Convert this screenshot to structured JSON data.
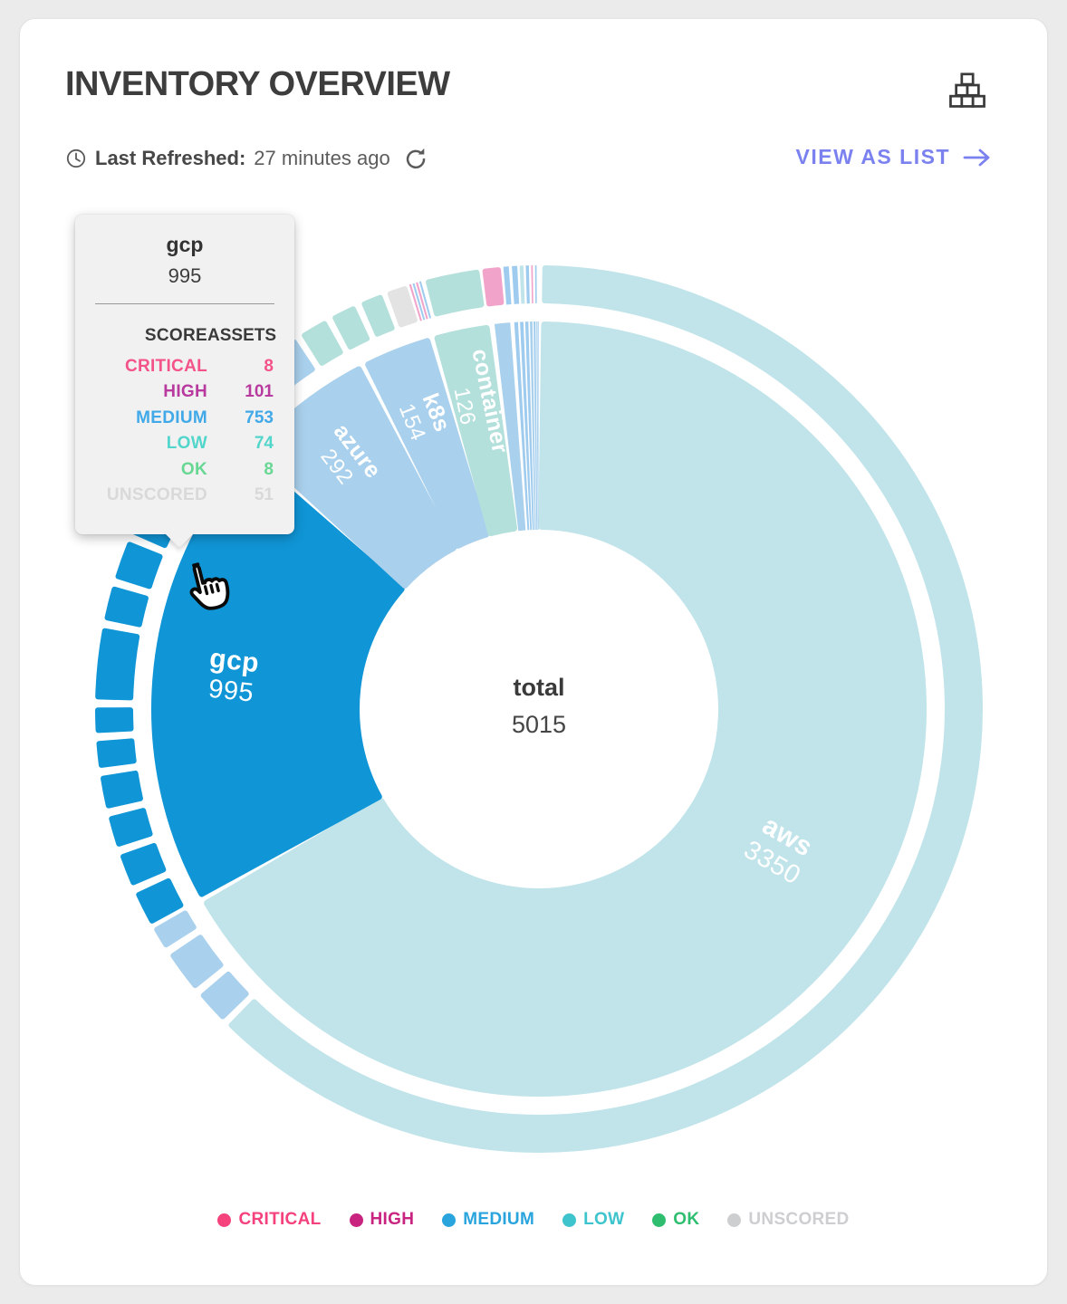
{
  "page": {
    "background": "#ebebeb",
    "card_background": "#ffffff"
  },
  "header": {
    "title": "INVENTORY OVERVIEW",
    "last_refreshed_label": "Last Refreshed:",
    "last_refreshed_value": "27 minutes ago",
    "view_as_list_label": "VIEW AS LIST",
    "accent_color": "#7b82f0"
  },
  "center": {
    "label": "total",
    "value": "5015"
  },
  "tooltip": {
    "title": "gcp",
    "total": "995",
    "columns": {
      "score": "SCORE",
      "assets": "ASSETS"
    },
    "rows": [
      {
        "label": "CRITICAL",
        "value": "8",
        "color": "#f4538a"
      },
      {
        "label": "HIGH",
        "value": "101",
        "color": "#b83a9e"
      },
      {
        "label": "MEDIUM",
        "value": "753",
        "color": "#41a9e8"
      },
      {
        "label": "LOW",
        "value": "74",
        "color": "#52d5cb"
      },
      {
        "label": "OK",
        "value": "8",
        "color": "#68d794"
      },
      {
        "label": "UNSCORED",
        "value": "51",
        "color": "#d9d9d9"
      }
    ]
  },
  "legend": {
    "items": [
      {
        "label": "CRITICAL",
        "color": "#f5427c"
      },
      {
        "label": "HIGH",
        "color": "#c92380"
      },
      {
        "label": "MEDIUM",
        "color": "#29a4dd"
      },
      {
        "label": "LOW",
        "color": "#3ec4cc"
      },
      {
        "label": "OK",
        "color": "#2fbe70"
      },
      {
        "label": "UNSCORED",
        "color": "#cdced0"
      }
    ]
  },
  "chart_data": {
    "type": "sunburst",
    "total": 5015,
    "center": [
      595,
      783
    ],
    "radii": {
      "inner": [
        198,
        428
      ],
      "outer": [
        448,
        490
      ]
    },
    "legend_position": "bottom",
    "colors": {
      "palecyan": "#c0e4ea",
      "brightblue": "#1095d6",
      "lightblue": "#a9d0ec",
      "paleteal": "#b4e0dc",
      "gray": "#e3e3e3",
      "pink": "#f2a3c9",
      "medblue": "#9ecbee"
    },
    "slices": [
      {
        "name": "aws",
        "value": 3350,
        "color": "palecyan",
        "label": true,
        "label_r": 308,
        "font": 30
      },
      {
        "name": "gcp",
        "value": 995,
        "color": "brightblue",
        "label": true,
        "label_r": 340,
        "font": 30,
        "highlighted": true
      },
      {
        "name": "azure",
        "value": 292,
        "color": "lightblue",
        "label": true,
        "label_r": 348,
        "font": 25
      },
      {
        "name": "k8s",
        "value": 154,
        "color": "lightblue",
        "label": true,
        "label_r": 346,
        "font": 25
      },
      {
        "name": "container",
        "value": 126,
        "color": "paleteal",
        "label": true,
        "label_r": 344,
        "font": 25
      },
      {
        "name": "",
        "value": 45,
        "color": "lightblue",
        "label": false
      },
      {
        "name": "",
        "value": 12,
        "color": "medblue",
        "label": false
      },
      {
        "name": "",
        "value": 11,
        "color": "medblue",
        "label": false
      },
      {
        "name": "",
        "value": 10,
        "color": "medblue",
        "label": false
      },
      {
        "name": "",
        "value": 8,
        "color": "lightblue",
        "label": false
      },
      {
        "name": "",
        "value": 6,
        "color": "medblue",
        "label": false
      },
      {
        "name": "",
        "value": 4,
        "color": "lightblue",
        "label": false
      },
      {
        "name": "",
        "value": 2,
        "color": "medblue",
        "label": false
      }
    ],
    "outer_ring": [
      {
        "start": 0.5,
        "end": 224.5,
        "color": "palecyan"
      },
      {
        "start": 225.5,
        "end": 229.8,
        "color": "lightblue"
      },
      {
        "start": 230.9,
        "end": 236.3,
        "color": "lightblue"
      },
      {
        "start": 237.4,
        "end": 240.3,
        "color": "lightblue"
      },
      {
        "start": 241.0,
        "end": 245.4,
        "color": "brightblue"
      },
      {
        "start": 246.55,
        "end": 250.75,
        "color": "brightblue"
      },
      {
        "start": 251.9,
        "end": 255.9,
        "color": "brightblue"
      },
      {
        "start": 257.05,
        "end": 261.25,
        "color": "brightblue"
      },
      {
        "start": 262.4,
        "end": 265.8,
        "color": "brightblue"
      },
      {
        "start": 266.95,
        "end": 270.15,
        "color": "brightblue"
      },
      {
        "start": 271.3,
        "end": 280.5,
        "color": "brightblue"
      },
      {
        "start": 281.65,
        "end": 286.05,
        "color": "brightblue"
      },
      {
        "start": 287.2,
        "end": 292.2,
        "color": "brightblue"
      },
      {
        "start": 293.35,
        "end": 297.55,
        "color": "brightblue"
      },
      {
        "start": 298.7,
        "end": 303.9,
        "color": "brightblue"
      },
      {
        "start": 305.05,
        "end": 311.2,
        "color": "brightblue"
      },
      {
        "start": 312.6,
        "end": 319.4,
        "color": "lightblue"
      },
      {
        "start": 320.4,
        "end": 326.6,
        "color": "lightblue"
      },
      {
        "start": 327.6,
        "end": 331.2,
        "color": "paleteal"
      },
      {
        "start": 332.2,
        "end": 335.4,
        "color": "paleteal"
      },
      {
        "start": 336.4,
        "end": 339.2,
        "color": "paleteal"
      },
      {
        "start": 340.0,
        "end": 342.6,
        "color": "gray"
      },
      {
        "start": 343.0,
        "end": 343.25,
        "color": "pink"
      },
      {
        "start": 343.45,
        "end": 343.7,
        "color": "medblue"
      },
      {
        "start": 343.9,
        "end": 344.15,
        "color": "pink"
      },
      {
        "start": 344.35,
        "end": 344.6,
        "color": "medblue"
      },
      {
        "start": 345.2,
        "end": 352.2,
        "color": "paleteal"
      },
      {
        "start": 352.7,
        "end": 355.0,
        "color": "pink"
      },
      {
        "start": 355.4,
        "end": 356.1,
        "color": "medblue"
      },
      {
        "start": 356.5,
        "end": 357.2,
        "color": "medblue"
      },
      {
        "start": 357.5,
        "end": 358.0,
        "color": "palecyan"
      },
      {
        "start": 358.3,
        "end": 358.7,
        "color": "medblue"
      },
      {
        "start": 359.0,
        "end": 359.2,
        "color": "pink"
      },
      {
        "start": 359.5,
        "end": 359.7,
        "color": "medblue"
      }
    ]
  }
}
